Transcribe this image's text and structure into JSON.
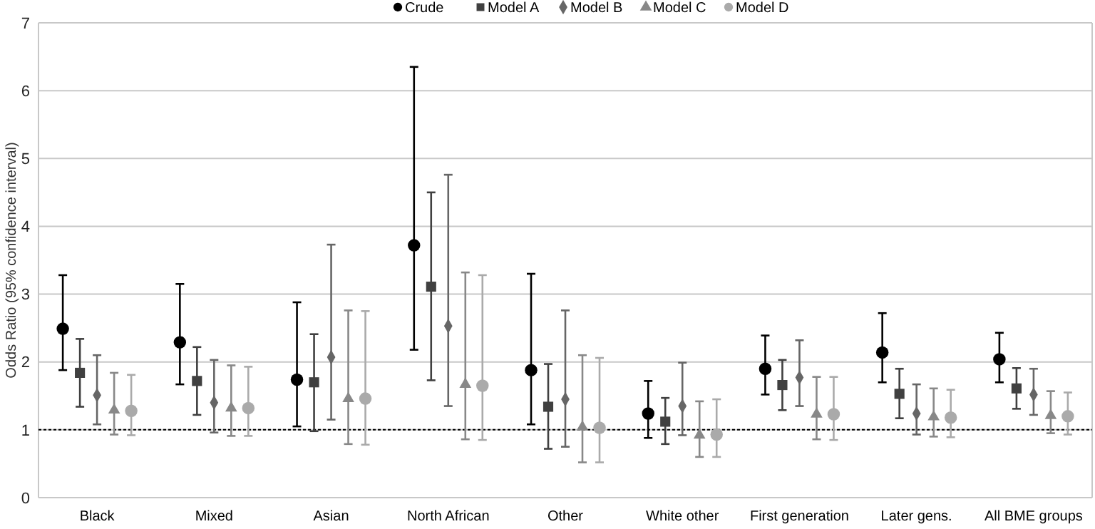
{
  "chart_data": {
    "type": "scatter",
    "ylabel": "Odds Ratio (95% confidence interval)",
    "categories": [
      "Black",
      "Mixed",
      "Asian",
      "North African",
      "Other",
      "White other",
      "First generation",
      "Later gens.",
      "All BME groups"
    ],
    "ylim": [
      0,
      7
    ],
    "yticks": [
      0,
      1,
      2,
      3,
      4,
      5,
      6,
      7
    ],
    "grid": "y",
    "legend": "top",
    "ref_lines": [
      {
        "axis": "y",
        "value": 1,
        "line_style": "dotted",
        "color": "#000000"
      }
    ],
    "series": [
      {
        "name": "Crude",
        "color": "#000000",
        "marker": "circle",
        "values": [
          2.49,
          2.29,
          1.74,
          3.72,
          1.88,
          1.24,
          1.9,
          2.14,
          2.04
        ],
        "errors": [
          [
            1.88,
            3.28
          ],
          [
            1.67,
            3.15
          ],
          [
            1.05,
            2.88
          ],
          [
            2.18,
            6.35
          ],
          [
            1.08,
            3.3
          ],
          [
            0.88,
            1.72
          ],
          [
            1.52,
            2.39
          ],
          [
            1.7,
            2.72
          ],
          [
            1.7,
            2.43
          ]
        ]
      },
      {
        "name": "Model A",
        "color": "#404040",
        "marker": "square",
        "values": [
          1.84,
          1.72,
          1.7,
          3.11,
          1.34,
          1.12,
          1.66,
          1.53,
          1.61
        ],
        "errors": [
          [
            1.34,
            2.34
          ],
          [
            1.22,
            2.22
          ],
          [
            0.98,
            2.41
          ],
          [
            1.73,
            4.5
          ],
          [
            0.72,
            1.97
          ],
          [
            0.79,
            1.47
          ],
          [
            1.29,
            2.03
          ],
          [
            1.17,
            1.9
          ],
          [
            1.31,
            1.91
          ]
        ]
      },
      {
        "name": "Model B",
        "color": "#666666",
        "marker": "diamond",
        "values": [
          1.51,
          1.4,
          2.07,
          2.53,
          1.45,
          1.35,
          1.77,
          1.24,
          1.52
        ],
        "errors": [
          [
            1.08,
            2.1
          ],
          [
            0.96,
            2.03
          ],
          [
            1.15,
            3.73
          ],
          [
            1.35,
            4.76
          ],
          [
            0.75,
            2.76
          ],
          [
            0.92,
            1.99
          ],
          [
            1.35,
            2.32
          ],
          [
            0.93,
            1.67
          ],
          [
            1.22,
            1.9
          ]
        ]
      },
      {
        "name": "Model C",
        "color": "#888888",
        "marker": "triangle",
        "values": [
          1.29,
          1.32,
          1.46,
          1.67,
          1.04,
          0.92,
          1.23,
          1.19,
          1.21
        ],
        "errors": [
          [
            0.93,
            1.84
          ],
          [
            0.91,
            1.95
          ],
          [
            0.79,
            2.76
          ],
          [
            0.86,
            3.32
          ],
          [
            0.52,
            2.1
          ],
          [
            0.6,
            1.42
          ],
          [
            0.86,
            1.78
          ],
          [
            0.9,
            1.61
          ],
          [
            0.95,
            1.57
          ]
        ]
      },
      {
        "name": "Model D",
        "color": "#aaaaaa",
        "marker": "circle",
        "values": [
          1.28,
          1.32,
          1.46,
          1.65,
          1.03,
          0.93,
          1.23,
          1.18,
          1.2
        ],
        "errors": [
          [
            0.92,
            1.81
          ],
          [
            0.91,
            1.93
          ],
          [
            0.78,
            2.75
          ],
          [
            0.85,
            3.28
          ],
          [
            0.52,
            2.06
          ],
          [
            0.6,
            1.45
          ],
          [
            0.85,
            1.78
          ],
          [
            0.89,
            1.59
          ],
          [
            0.93,
            1.55
          ]
        ]
      }
    ]
  }
}
